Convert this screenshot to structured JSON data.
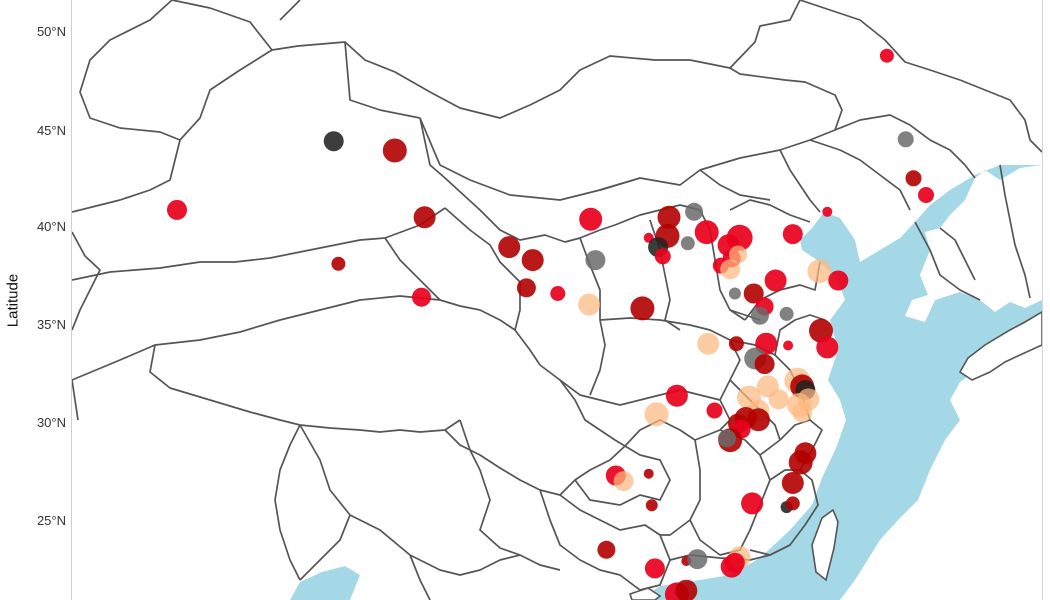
{
  "chart_data": {
    "type": "scatter",
    "ylabel": "Latitude",
    "y_ticks": [
      "50°N",
      "45°N",
      "40°N",
      "35°N",
      "30°N",
      "25°N"
    ],
    "y_tick_values": [
      50,
      45,
      40,
      35,
      30,
      25
    ],
    "ylim": [
      20.1,
      52.4
    ],
    "xlim": [
      73.6,
      135.5
    ],
    "colors": {
      "land": "#ffffff",
      "sea": "#a4d8e6",
      "border": "#555555",
      "red": "#e8001c",
      "dark_red": "#b30000",
      "orange": "#fdb97f",
      "gray": "#6b6b6b",
      "black": "#222222"
    },
    "points": [
      {
        "lon": 125.6,
        "lat": 49.4,
        "c": "red",
        "s": 14
      },
      {
        "lon": 90.3,
        "lat": 44.8,
        "c": "black",
        "s": 20
      },
      {
        "lon": 94.2,
        "lat": 44.3,
        "c": "dark_red",
        "s": 24
      },
      {
        "lon": 80.3,
        "lat": 41.1,
        "c": "red",
        "s": 20
      },
      {
        "lon": 90.6,
        "lat": 38.2,
        "c": "dark_red",
        "s": 14
      },
      {
        "lon": 96.1,
        "lat": 40.7,
        "c": "dark_red",
        "s": 22
      },
      {
        "lon": 95.9,
        "lat": 36.4,
        "c": "red",
        "s": 19
      },
      {
        "lon": 106.7,
        "lat": 40.6,
        "c": "red",
        "s": 23
      },
      {
        "lon": 101.5,
        "lat": 39.1,
        "c": "dark_red",
        "s": 22
      },
      {
        "lon": 103.0,
        "lat": 38.4,
        "c": "dark_red",
        "s": 22
      },
      {
        "lon": 102.6,
        "lat": 36.9,
        "c": "dark_red",
        "s": 19
      },
      {
        "lon": 104.6,
        "lat": 36.6,
        "c": "red",
        "s": 15
      },
      {
        "lon": 107.0,
        "lat": 38.4,
        "c": "gray",
        "s": 20
      },
      {
        "lon": 106.6,
        "lat": 36.0,
        "c": "orange",
        "s": 22
      },
      {
        "lon": 110.0,
        "lat": 35.8,
        "c": "dark_red",
        "s": 24
      },
      {
        "lon": 111.7,
        "lat": 40.7,
        "c": "dark_red",
        "s": 23
      },
      {
        "lon": 111.6,
        "lat": 39.7,
        "c": "dark_red",
        "s": 24
      },
      {
        "lon": 113.3,
        "lat": 41.0,
        "c": "gray",
        "s": 18
      },
      {
        "lon": 110.4,
        "lat": 39.6,
        "c": "red",
        "s": 10
      },
      {
        "lon": 111.0,
        "lat": 39.1,
        "c": "black",
        "s": 20
      },
      {
        "lon": 111.3,
        "lat": 38.6,
        "c": "red",
        "s": 16
      },
      {
        "lon": 112.9,
        "lat": 39.3,
        "c": "gray",
        "s": 14
      },
      {
        "lon": 114.1,
        "lat": 39.9,
        "c": "red",
        "s": 24
      },
      {
        "lon": 116.2,
        "lat": 39.6,
        "c": "red",
        "s": 26
      },
      {
        "lon": 115.5,
        "lat": 39.2,
        "c": "red",
        "s": 22
      },
      {
        "lon": 115.7,
        "lat": 38.5,
        "c": "red",
        "s": 18
      },
      {
        "lon": 116.1,
        "lat": 38.7,
        "c": "orange",
        "s": 18
      },
      {
        "lon": 115.0,
        "lat": 38.1,
        "c": "red",
        "s": 16
      },
      {
        "lon": 115.6,
        "lat": 37.9,
        "c": "orange",
        "s": 20
      },
      {
        "lon": 119.6,
        "lat": 39.8,
        "c": "red",
        "s": 20
      },
      {
        "lon": 121.8,
        "lat": 41.0,
        "c": "red",
        "s": 10
      },
      {
        "lon": 127.3,
        "lat": 42.8,
        "c": "dark_red",
        "s": 16
      },
      {
        "lon": 126.8,
        "lat": 44.9,
        "c": "gray",
        "s": 16
      },
      {
        "lon": 128.1,
        "lat": 41.9,
        "c": "red",
        "s": 16
      },
      {
        "lon": 118.5,
        "lat": 37.3,
        "c": "red",
        "s": 22
      },
      {
        "lon": 121.3,
        "lat": 37.8,
        "c": "orange",
        "s": 24
      },
      {
        "lon": 122.5,
        "lat": 37.3,
        "c": "red",
        "s": 20
      },
      {
        "lon": 115.9,
        "lat": 36.6,
        "c": "gray",
        "s": 12
      },
      {
        "lon": 117.1,
        "lat": 36.6,
        "c": "dark_red",
        "s": 20
      },
      {
        "lon": 117.8,
        "lat": 35.9,
        "c": "red",
        "s": 18
      },
      {
        "lon": 117.5,
        "lat": 35.4,
        "c": "gray",
        "s": 18
      },
      {
        "lon": 119.2,
        "lat": 35.5,
        "c": "gray",
        "s": 14
      },
      {
        "lon": 121.4,
        "lat": 34.6,
        "c": "dark_red",
        "s": 24
      },
      {
        "lon": 117.9,
        "lat": 33.9,
        "c": "red",
        "s": 22
      },
      {
        "lon": 121.8,
        "lat": 33.7,
        "c": "red",
        "s": 22
      },
      {
        "lon": 119.3,
        "lat": 33.8,
        "c": "red",
        "s": 10
      },
      {
        "lon": 114.2,
        "lat": 33.9,
        "c": "orange",
        "s": 22
      },
      {
        "lon": 116.0,
        "lat": 33.9,
        "c": "dark_red",
        "s": 15
      },
      {
        "lon": 117.2,
        "lat": 33.1,
        "c": "gray",
        "s": 22
      },
      {
        "lon": 117.8,
        "lat": 32.8,
        "c": "dark_red",
        "s": 20
      },
      {
        "lon": 119.9,
        "lat": 31.9,
        "c": "orange",
        "s": 26
      },
      {
        "lon": 120.2,
        "lat": 31.6,
        "c": "dark_red",
        "s": 24
      },
      {
        "lon": 120.4,
        "lat": 31.4,
        "c": "black",
        "s": 20
      },
      {
        "lon": 120.6,
        "lat": 30.9,
        "c": "orange",
        "s": 22
      },
      {
        "lon": 120.0,
        "lat": 30.6,
        "c": "orange",
        "s": 24
      },
      {
        "lon": 120.2,
        "lat": 30.2,
        "c": "orange",
        "s": 20
      },
      {
        "lon": 118.0,
        "lat": 31.6,
        "c": "orange",
        "s": 22
      },
      {
        "lon": 116.8,
        "lat": 31.0,
        "c": "orange",
        "s": 24
      },
      {
        "lon": 118.7,
        "lat": 30.9,
        "c": "orange",
        "s": 20
      },
      {
        "lon": 117.4,
        "lat": 30.3,
        "c": "orange",
        "s": 22
      },
      {
        "lon": 117.4,
        "lat": 29.8,
        "c": "dark_red",
        "s": 23
      },
      {
        "lon": 116.6,
        "lat": 29.9,
        "c": "dark_red",
        "s": 22
      },
      {
        "lon": 112.2,
        "lat": 31.1,
        "c": "red",
        "s": 22
      },
      {
        "lon": 110.9,
        "lat": 30.1,
        "c": "orange",
        "s": 24
      },
      {
        "lon": 114.6,
        "lat": 30.3,
        "c": "red",
        "s": 16
      },
      {
        "lon": 116.1,
        "lat": 29.6,
        "c": "dark_red",
        "s": 20
      },
      {
        "lon": 116.3,
        "lat": 29.3,
        "c": "red",
        "s": 19
      },
      {
        "lon": 115.6,
        "lat": 28.7,
        "c": "dark_red",
        "s": 24
      },
      {
        "lon": 115.4,
        "lat": 28.8,
        "c": "gray",
        "s": 18
      },
      {
        "lon": 120.4,
        "lat": 28.0,
        "c": "dark_red",
        "s": 22
      },
      {
        "lon": 120.1,
        "lat": 27.5,
        "c": "dark_red",
        "s": 24
      },
      {
        "lon": 119.6,
        "lat": 26.4,
        "c": "dark_red",
        "s": 22
      },
      {
        "lon": 117.0,
        "lat": 25.3,
        "c": "red",
        "s": 22
      },
      {
        "lon": 119.2,
        "lat": 25.1,
        "c": "black",
        "s": 12
      },
      {
        "lon": 119.6,
        "lat": 25.3,
        "c": "dark_red",
        "s": 14
      },
      {
        "lon": 108.3,
        "lat": 26.8,
        "c": "red",
        "s": 20
      },
      {
        "lon": 108.8,
        "lat": 26.5,
        "c": "orange",
        "s": 20
      },
      {
        "lon": 110.4,
        "lat": 26.9,
        "c": "dark_red",
        "s": 10
      },
      {
        "lon": 110.6,
        "lat": 25.2,
        "c": "dark_red",
        "s": 12
      },
      {
        "lon": 107.7,
        "lat": 22.8,
        "c": "dark_red",
        "s": 18
      },
      {
        "lon": 112.8,
        "lat": 22.2,
        "c": "dark_red",
        "s": 10
      },
      {
        "lon": 113.5,
        "lat": 22.3,
        "c": "gray",
        "s": 20
      },
      {
        "lon": 110.8,
        "lat": 21.8,
        "c": "red",
        "s": 20
      },
      {
        "lon": 115.7,
        "lat": 21.9,
        "c": "red",
        "s": 22
      },
      {
        "lon": 116.2,
        "lat": 22.4,
        "c": "orange",
        "s": 22
      },
      {
        "lon": 115.9,
        "lat": 22.1,
        "c": "red",
        "s": 20
      },
      {
        "lon": 112.2,
        "lat": 20.4,
        "c": "red",
        "s": 24
      },
      {
        "lon": 112.8,
        "lat": 20.6,
        "c": "dark_red",
        "s": 22
      }
    ]
  }
}
